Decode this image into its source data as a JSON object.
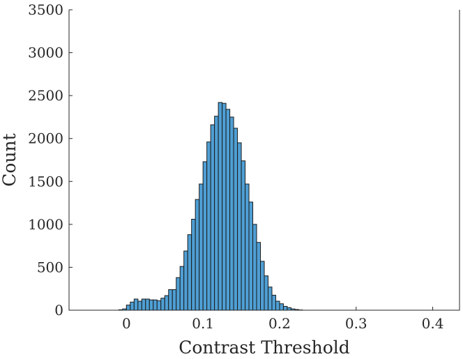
{
  "chart_data": {
    "type": "bar",
    "title": "",
    "xlabel": "Contrast Threshold",
    "ylabel": "Count",
    "xlim": [
      -0.075,
      0.435
    ],
    "ylim": [
      0,
      3500
    ],
    "xticks": [
      0,
      0.1,
      0.2,
      0.3,
      0.4
    ],
    "xtick_labels": [
      "0",
      "0.1",
      "0.2",
      "0.3",
      "0.4"
    ],
    "yticks": [
      0,
      500,
      1000,
      1500,
      2000,
      2500,
      3000,
      3500
    ],
    "ytick_labels": [
      "0",
      "500",
      "1000",
      "1500",
      "2000",
      "2500",
      "3000",
      "3500"
    ],
    "grid": false,
    "bar_color": "#4f9fd4",
    "edge_color": "#1a1a1a",
    "bin_width": 0.005,
    "bin_start": -0.01,
    "values": [
      5,
      15,
      60,
      95,
      130,
      105,
      130,
      130,
      120,
      120,
      110,
      140,
      170,
      240,
      240,
      380,
      510,
      690,
      880,
      1060,
      1290,
      1470,
      1730,
      1960,
      2160,
      2260,
      2420,
      2410,
      2340,
      2250,
      2120,
      1950,
      1740,
      1470,
      1260,
      1000,
      790,
      570,
      400,
      270,
      175,
      105,
      75,
      45,
      30,
      15,
      8,
      3
    ]
  }
}
